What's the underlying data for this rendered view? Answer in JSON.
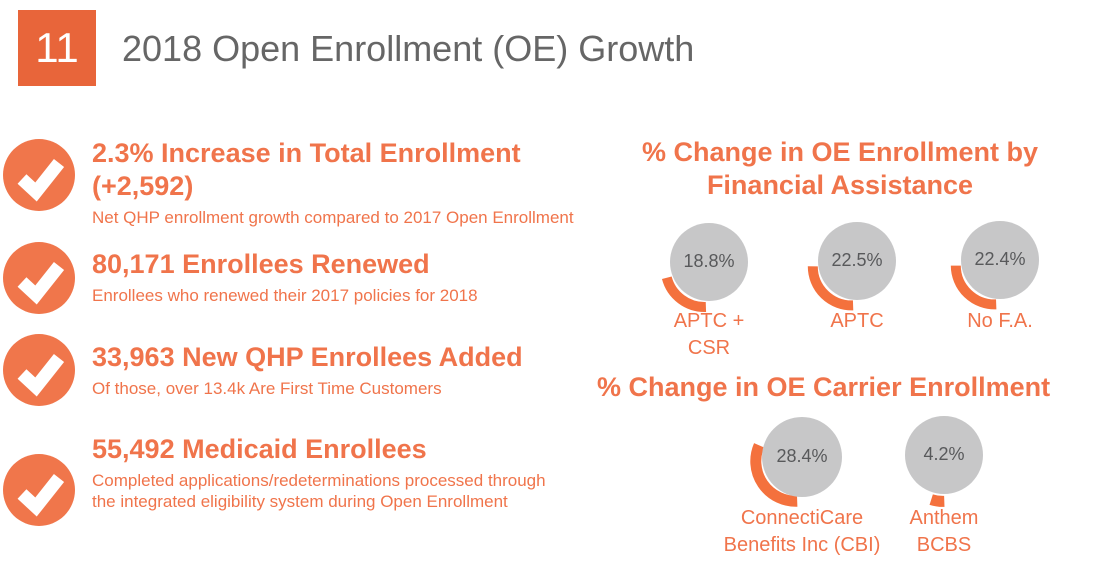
{
  "slide": {
    "number": "11",
    "title": "2018 Open Enrollment (OE) Growth"
  },
  "colors": {
    "accent_text_orange": "#F0744B",
    "number_box_orange": "#E8653A",
    "arc_orange": "#F4713D",
    "circle_gray": "#C7C7C8",
    "percent_text_gray": "#58595B",
    "title_gray": "#666666"
  },
  "bullets": [
    {
      "heading": "2.3% Increase in Total Enrollment (+2,592)",
      "sub": "Net QHP enrollment growth compared to 2017 Open Enrollment"
    },
    {
      "heading": "80,171 Enrollees Renewed",
      "sub": "Enrollees who renewed their 2017 policies for 2018"
    },
    {
      "heading": "33,963 New QHP Enrollees Added",
      "sub": "Of those, over 13.4k Are First Time Customers"
    },
    {
      "heading": "55,492 Medicaid Enrollees",
      "sub": "Completed applications/redeterminations processed through the integrated eligibility system during Open Enrollment"
    }
  ],
  "chart_data": [
    {
      "type": "pie",
      "title": "% Change in OE Enrollment by Financial Assistance",
      "categories": [
        "APTC + CSR",
        "APTC",
        "No F.A."
      ],
      "values": [
        18.8,
        22.5,
        22.4
      ],
      "unit": "%",
      "style": "gray circle with exploded orange arc slice equal to value, value label inside circle, category label below"
    },
    {
      "type": "pie",
      "title": "% Change in OE Carrier Enrollment",
      "categories": [
        "ConnectiCare Benefits Inc (CBI)",
        "Anthem BCBS"
      ],
      "values": [
        28.4,
        4.2
      ],
      "unit": "%",
      "style": "gray circle with exploded orange arc slice equal to value, value label inside circle, category label below"
    }
  ]
}
